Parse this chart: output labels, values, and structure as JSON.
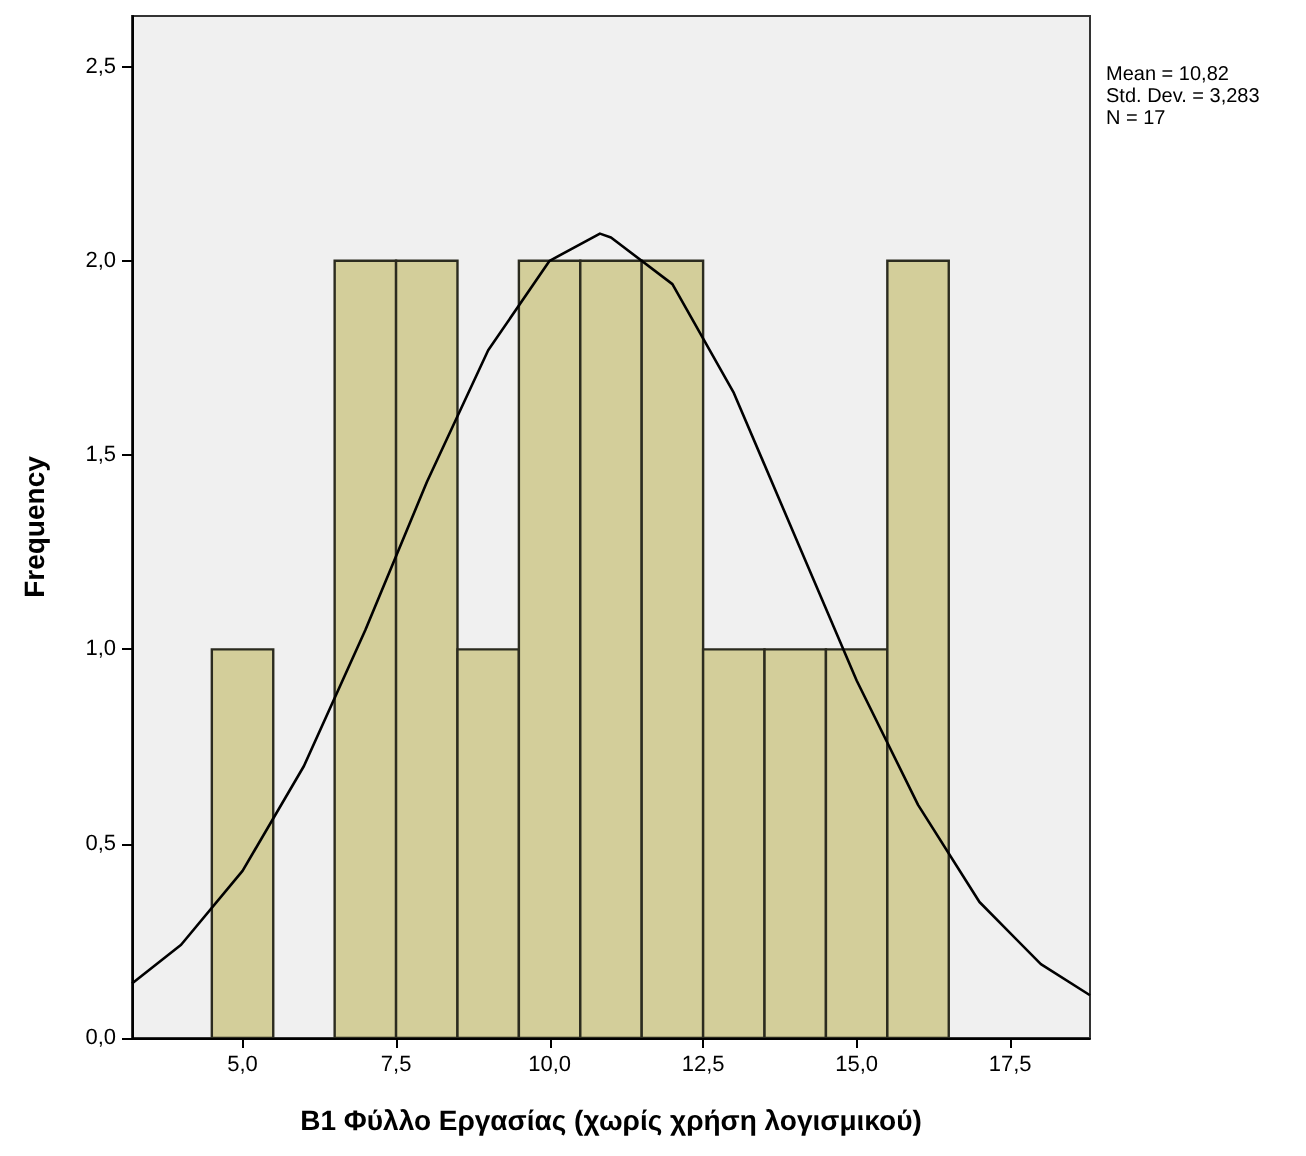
{
  "chart_data": {
    "type": "histogram",
    "xlabel": "B1 Φύλλο Εργασίας (χωρίς χρήση λογισμικού)",
    "ylabel": "Frequency",
    "annotations": [
      "Mean = 10,82",
      "Std. Dev. = 3,283",
      "N = 17"
    ],
    "xlim": [
      3.2,
      18.8
    ],
    "xticks": [
      {
        "value": 5,
        "label": "5,0"
      },
      {
        "value": 7.5,
        "label": "7,5"
      },
      {
        "value": 10,
        "label": "10,0"
      },
      {
        "value": 12.5,
        "label": "12,5"
      },
      {
        "value": 15,
        "label": "15,0"
      },
      {
        "value": 17.5,
        "label": "17,5"
      }
    ],
    "ylim": [
      0,
      2.63
    ],
    "yticks": [
      {
        "value": 0,
        "label": "0,0"
      },
      {
        "value": 0.5,
        "label": "0,5"
      },
      {
        "value": 1,
        "label": "1,0"
      },
      {
        "value": 1.5,
        "label": "1,5"
      },
      {
        "value": 2,
        "label": "2,0"
      },
      {
        "value": 2.5,
        "label": "2,5"
      }
    ],
    "grid": false,
    "series": [
      {
        "color": "#d3ce9a",
        "bins": [
          4.5,
          5.5,
          6.5,
          7.5,
          8.5,
          9.5,
          10.5,
          11.5,
          12.5,
          13.5,
          14.5,
          15.5,
          16.5
        ],
        "values": [
          1,
          0,
          2,
          2,
          1,
          2,
          2,
          2,
          1,
          1,
          1,
          2
        ]
      },
      {
        "type": "line",
        "color": "#000000",
        "x": [
          3.2,
          4,
          5,
          6,
          7,
          8,
          9,
          10,
          10.82,
          11,
          12,
          13,
          14,
          15,
          16,
          17,
          18,
          18.8
        ],
        "values": [
          0.14,
          0.24,
          0.43,
          0.7,
          1.05,
          1.43,
          1.77,
          2.0,
          2.07,
          2.06,
          1.94,
          1.66,
          1.29,
          0.92,
          0.6,
          0.35,
          0.19,
          0.11
        ]
      }
    ]
  }
}
